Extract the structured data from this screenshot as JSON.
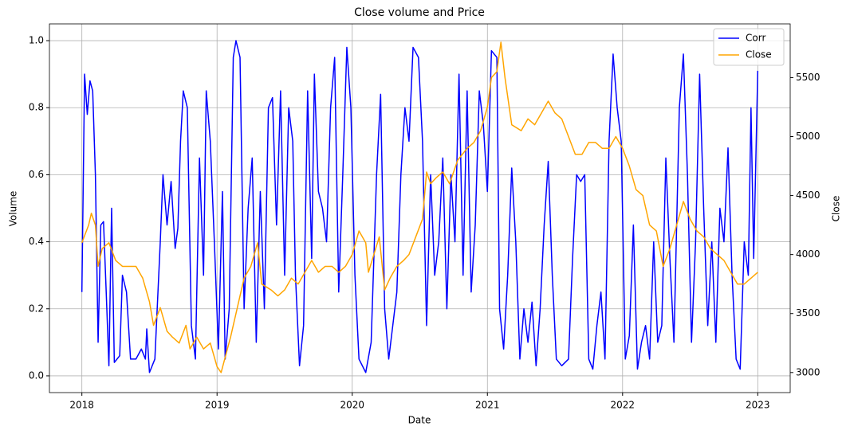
{
  "chart_data": {
    "type": "line",
    "title": "Close volume and Price",
    "x_label": "Date",
    "y_label": "Volume",
    "y2_label": "Close",
    "xlim": [
      2017.76,
      2023.24
    ],
    "xticks": [
      2018,
      2019,
      2020,
      2021,
      2022,
      2023
    ],
    "ylim": [
      -0.05,
      1.05
    ],
    "yticks": [
      {
        "value": 0,
        "label": "0.0"
      },
      0.2,
      0.4,
      0.6,
      0.8,
      {
        "value": 1,
        "label": "1.0"
      }
    ],
    "y2lim": [
      2830,
      5955
    ],
    "y2ticks": [
      3000,
      3500,
      4000,
      4500,
      5000,
      5500
    ],
    "grid": true,
    "legend": "upper right",
    "series": [
      {
        "name": "Corr",
        "color": "#0000ff",
        "x": [
          2018.0,
          2018.02,
          2018.04,
          2018.06,
          2018.08,
          2018.1,
          2018.12,
          2018.14,
          2018.16,
          2018.18,
          2018.2,
          2018.22,
          2018.24,
          2018.28,
          2018.3,
          2018.33,
          2018.36,
          2018.4,
          2018.44,
          2018.47,
          2018.48,
          2018.5,
          2018.54,
          2018.58,
          2018.6,
          2018.63,
          2018.66,
          2018.69,
          2018.71,
          2018.73,
          2018.75,
          2018.78,
          2018.81,
          2018.84,
          2018.87,
          2018.9,
          2018.92,
          2018.95,
          2018.98,
          2019.01,
          2019.04,
          2019.06,
          2019.09,
          2019.12,
          2019.14,
          2019.17,
          2019.2,
          2019.23,
          2019.26,
          2019.29,
          2019.32,
          2019.35,
          2019.38,
          2019.41,
          2019.44,
          2019.47,
          2019.5,
          2019.53,
          2019.56,
          2019.58,
          2019.61,
          2019.64,
          2019.67,
          2019.7,
          2019.72,
          2019.75,
          2019.78,
          2019.81,
          2019.84,
          2019.87,
          2019.9,
          2019.93,
          2019.96,
          2019.99,
          2020.02,
          2020.05,
          2020.1,
          2020.14,
          2020.18,
          2020.21,
          2020.24,
          2020.27,
          2020.3,
          2020.33,
          2020.36,
          2020.39,
          2020.42,
          2020.45,
          2020.49,
          2020.52,
          2020.55,
          2020.58,
          2020.61,
          2020.64,
          2020.67,
          2020.7,
          2020.73,
          2020.76,
          2020.79,
          2020.82,
          2020.85,
          2020.88,
          2020.91,
          2020.94,
          2020.97,
          2021.0,
          2021.03,
          2021.07,
          2021.09,
          2021.12,
          2021.15,
          2021.18,
          2021.21,
          2021.24,
          2021.27,
          2021.3,
          2021.33,
          2021.36,
          2021.39,
          2021.42,
          2021.45,
          2021.48,
          2021.51,
          2021.55,
          2021.6,
          2021.63,
          2021.66,
          2021.69,
          2021.72,
          2021.75,
          2021.78,
          2021.81,
          2021.84,
          2021.87,
          2021.9,
          2021.93,
          2021.96,
          2021.99,
          2022.02,
          2022.05,
          2022.08,
          2022.11,
          2022.14,
          2022.17,
          2022.2,
          2022.23,
          2022.26,
          2022.29,
          2022.32,
          2022.35,
          2022.38,
          2022.42,
          2022.45,
          2022.48,
          2022.51,
          2022.54,
          2022.57,
          2022.6,
          2022.63,
          2022.66,
          2022.69,
          2022.72,
          2022.75,
          2022.78,
          2022.81,
          2022.84,
          2022.87,
          2022.9,
          2022.93,
          2022.95,
          2022.97,
          2023.0
        ],
        "values": [
          0.25,
          0.9,
          0.78,
          0.88,
          0.85,
          0.6,
          0.1,
          0.45,
          0.46,
          0.25,
          0.03,
          0.5,
          0.04,
          0.06,
          0.3,
          0.25,
          0.05,
          0.05,
          0.08,
          0.05,
          0.14,
          0.01,
          0.05,
          0.4,
          0.6,
          0.45,
          0.58,
          0.38,
          0.44,
          0.7,
          0.85,
          0.8,
          0.15,
          0.05,
          0.65,
          0.3,
          0.85,
          0.7,
          0.4,
          0.08,
          0.55,
          0.05,
          0.2,
          0.95,
          1.0,
          0.95,
          0.2,
          0.5,
          0.65,
          0.1,
          0.55,
          0.2,
          0.8,
          0.83,
          0.45,
          0.85,
          0.3,
          0.8,
          0.7,
          0.3,
          0.03,
          0.15,
          0.85,
          0.35,
          0.9,
          0.55,
          0.5,
          0.4,
          0.8,
          0.95,
          0.25,
          0.6,
          0.98,
          0.8,
          0.3,
          0.05,
          0.01,
          0.1,
          0.6,
          0.84,
          0.2,
          0.05,
          0.15,
          0.25,
          0.6,
          0.8,
          0.7,
          0.98,
          0.95,
          0.7,
          0.15,
          0.6,
          0.3,
          0.4,
          0.65,
          0.2,
          0.6,
          0.4,
          0.9,
          0.3,
          0.85,
          0.25,
          0.45,
          0.85,
          0.75,
          0.55,
          0.97,
          0.95,
          0.2,
          0.08,
          0.3,
          0.62,
          0.4,
          0.05,
          0.2,
          0.1,
          0.22,
          0.03,
          0.2,
          0.45,
          0.64,
          0.3,
          0.05,
          0.03,
          0.05,
          0.35,
          0.6,
          0.58,
          0.6,
          0.05,
          0.02,
          0.15,
          0.25,
          0.05,
          0.7,
          0.96,
          0.8,
          0.7,
          0.05,
          0.12,
          0.45,
          0.02,
          0.1,
          0.15,
          0.05,
          0.4,
          0.1,
          0.15,
          0.65,
          0.35,
          0.1,
          0.8,
          0.96,
          0.6,
          0.1,
          0.4,
          0.9,
          0.5,
          0.15,
          0.4,
          0.1,
          0.5,
          0.4,
          0.68,
          0.3,
          0.05,
          0.02,
          0.4,
          0.3,
          0.8,
          0.35,
          0.91
        ]
      },
      {
        "name": "Close",
        "color": "#ffa500",
        "axis": "y2",
        "x": [
          2018.0,
          2018.05,
          2018.07,
          2018.1,
          2018.12,
          2018.15,
          2018.2,
          2018.25,
          2018.3,
          2018.35,
          2018.4,
          2018.45,
          2018.5,
          2018.53,
          2018.58,
          2018.63,
          2018.67,
          2018.72,
          2018.77,
          2018.8,
          2018.85,
          2018.9,
          2018.95,
          2019.0,
          2019.03,
          2019.1,
          2019.15,
          2019.2,
          2019.25,
          2019.3,
          2019.33,
          2019.4,
          2019.45,
          2019.5,
          2019.55,
          2019.6,
          2019.65,
          2019.7,
          2019.75,
          2019.8,
          2019.85,
          2019.9,
          2019.95,
          2020.0,
          2020.05,
          2020.1,
          2020.12,
          2020.2,
          2020.24,
          2020.28,
          2020.33,
          2020.38,
          2020.42,
          2020.47,
          2020.52,
          2020.55,
          2020.58,
          2020.62,
          2020.67,
          2020.72,
          2020.78,
          2020.85,
          2020.9,
          2020.95,
          2021.0,
          2021.03,
          2021.07,
          2021.1,
          2021.13,
          2021.18,
          2021.25,
          2021.3,
          2021.35,
          2021.4,
          2021.45,
          2021.5,
          2021.55,
          2021.6,
          2021.65,
          2021.7,
          2021.75,
          2021.8,
          2021.85,
          2021.9,
          2021.95,
          2022.0,
          2022.05,
          2022.1,
          2022.15,
          2022.2,
          2022.25,
          2022.3,
          2022.35,
          2022.4,
          2022.45,
          2022.5,
          2022.55,
          2022.6,
          2022.65,
          2022.7,
          2022.75,
          2022.8,
          2022.85,
          2022.9,
          2022.95,
          2023.0
        ],
        "values": [
          4100,
          4250,
          4350,
          4250,
          3900,
          4050,
          4100,
          3950,
          3900,
          3900,
          3900,
          3800,
          3600,
          3400,
          3550,
          3350,
          3300,
          3250,
          3400,
          3200,
          3300,
          3200,
          3250,
          3050,
          3000,
          3300,
          3550,
          3800,
          3900,
          4100,
          3750,
          3700,
          3650,
          3700,
          3800,
          3750,
          3850,
          3950,
          3850,
          3900,
          3900,
          3850,
          3900,
          4000,
          4200,
          4100,
          3850,
          4150,
          3700,
          3800,
          3900,
          3950,
          4000,
          4150,
          4300,
          4700,
          4600,
          4650,
          4700,
          4600,
          4800,
          4900,
          4950,
          5050,
          5250,
          5500,
          5550,
          5800,
          5500,
          5100,
          5050,
          5150,
          5100,
          5200,
          5300,
          5200,
          5150,
          5000,
          4850,
          4850,
          4950,
          4950,
          4900,
          4900,
          5000,
          4900,
          4750,
          4550,
          4500,
          4250,
          4200,
          3900,
          4050,
          4250,
          4450,
          4300,
          4200,
          4150,
          4050,
          4000,
          3950,
          3850,
          3750,
          3750,
          3800,
          3850
        ]
      }
    ]
  }
}
